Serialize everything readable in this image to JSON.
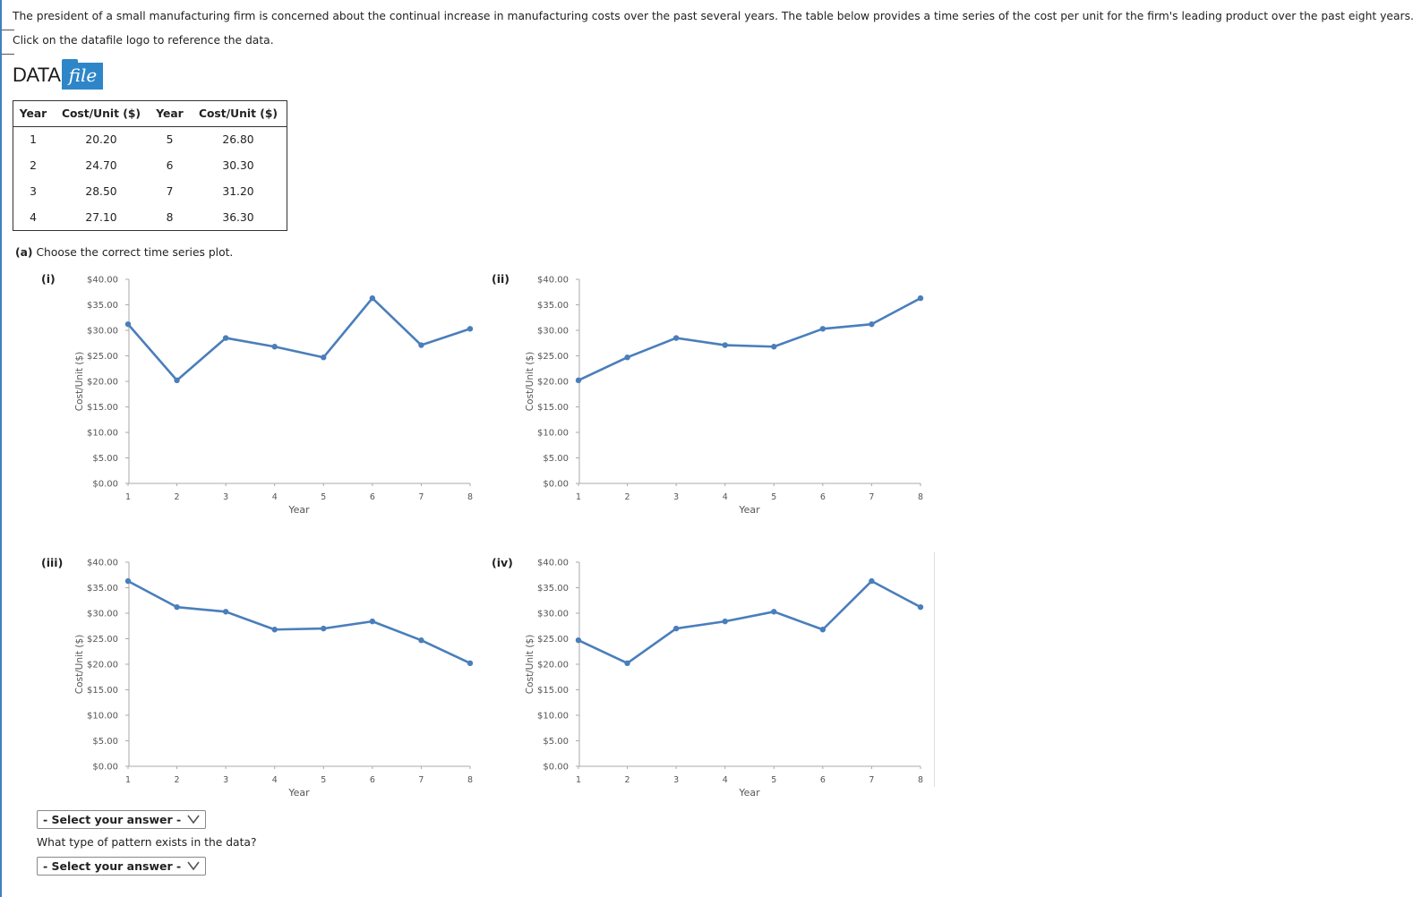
{
  "question": {
    "text": "The president of a small manufacturing firm is concerned about the continual increase in manufacturing costs over the past several years. The table below provides a time series of the cost per unit for the firm's leading product over the past eight years.",
    "click_text": "Click on the datafile logo to reference the data."
  },
  "logo": {
    "word": "DATA",
    "folder_text": "file",
    "folder_color": "#2e86c8"
  },
  "table": {
    "headers": [
      "Year",
      "Cost/Unit ($)",
      "Year",
      "Cost/Unit ($)"
    ],
    "rows": [
      [
        "1",
        "20.20",
        "5",
        "26.80"
      ],
      [
        "2",
        "24.70",
        "6",
        "30.30"
      ],
      [
        "3",
        "28.50",
        "7",
        "31.20"
      ],
      [
        "4",
        "27.10",
        "8",
        "36.30"
      ]
    ]
  },
  "part_a": {
    "label": "(a)",
    "text": "Choose the correct time series plot."
  },
  "chart_data": [
    {
      "type": "line",
      "option": "(i)",
      "x": [
        1,
        2,
        3,
        4,
        5,
        6,
        7,
        8
      ],
      "y": [
        31.2,
        20.2,
        28.5,
        26.8,
        24.7,
        36.3,
        27.1,
        30.3
      ],
      "xlabel": "Year",
      "ylabel": "Cost/Unit ($)",
      "ylim": [
        0,
        40
      ],
      "yticks": [
        "$0.00",
        "$5.00",
        "$10.00",
        "$15.00",
        "$20.00",
        "$25.00",
        "$30.00",
        "$35.00",
        "$40.00"
      ],
      "xticks": [
        "1",
        "2",
        "3",
        "4",
        "5",
        "6",
        "7",
        "8"
      ],
      "color": "#4a7ebb"
    },
    {
      "type": "line",
      "option": "(ii)",
      "x": [
        1,
        2,
        3,
        4,
        5,
        6,
        7,
        8
      ],
      "y": [
        20.2,
        24.7,
        28.5,
        27.1,
        26.8,
        30.3,
        31.2,
        36.3
      ],
      "xlabel": "Year",
      "ylabel": "Cost/Unit ($)",
      "ylim": [
        0,
        40
      ],
      "yticks": [
        "$0.00",
        "$5.00",
        "$10.00",
        "$15.00",
        "$20.00",
        "$25.00",
        "$30.00",
        "$35.00",
        "$40.00"
      ],
      "xticks": [
        "1",
        "2",
        "3",
        "4",
        "5",
        "6",
        "7",
        "8"
      ],
      "color": "#4a7ebb"
    },
    {
      "type": "line",
      "option": "(iii)",
      "x": [
        1,
        2,
        3,
        4,
        5,
        6,
        7,
        8
      ],
      "y": [
        36.3,
        31.2,
        30.3,
        26.8,
        27.0,
        28.4,
        24.7,
        20.2
      ],
      "xlabel": "Year",
      "ylabel": "Cost/Unit ($)",
      "ylim": [
        0,
        40
      ],
      "yticks": [
        "$0.00",
        "$5.00",
        "$10.00",
        "$15.00",
        "$20.00",
        "$25.00",
        "$30.00",
        "$35.00",
        "$40.00"
      ],
      "xticks": [
        "1",
        "2",
        "3",
        "4",
        "5",
        "6",
        "7",
        "8"
      ],
      "color": "#4a7ebb"
    },
    {
      "type": "line",
      "option": "(iv)",
      "x": [
        1,
        2,
        3,
        4,
        5,
        6,
        7,
        8
      ],
      "y": [
        24.7,
        20.2,
        27.0,
        28.4,
        30.3,
        26.8,
        36.3,
        31.2
      ],
      "xlabel": "Year",
      "ylabel": "Cost/Unit ($)",
      "ylim": [
        0,
        40
      ],
      "yticks": [
        "$0.00",
        "$5.00",
        "$10.00",
        "$15.00",
        "$20.00",
        "$25.00",
        "$30.00",
        "$35.00",
        "$40.00"
      ],
      "xticks": [
        "1",
        "2",
        "3",
        "4",
        "5",
        "6",
        "7",
        "8"
      ],
      "color": "#4a7ebb"
    }
  ],
  "select1": {
    "label": "- Select your answer -"
  },
  "pattern_question": "What type of pattern exists in the data?",
  "select2": {
    "label": "- Select your answer -"
  }
}
